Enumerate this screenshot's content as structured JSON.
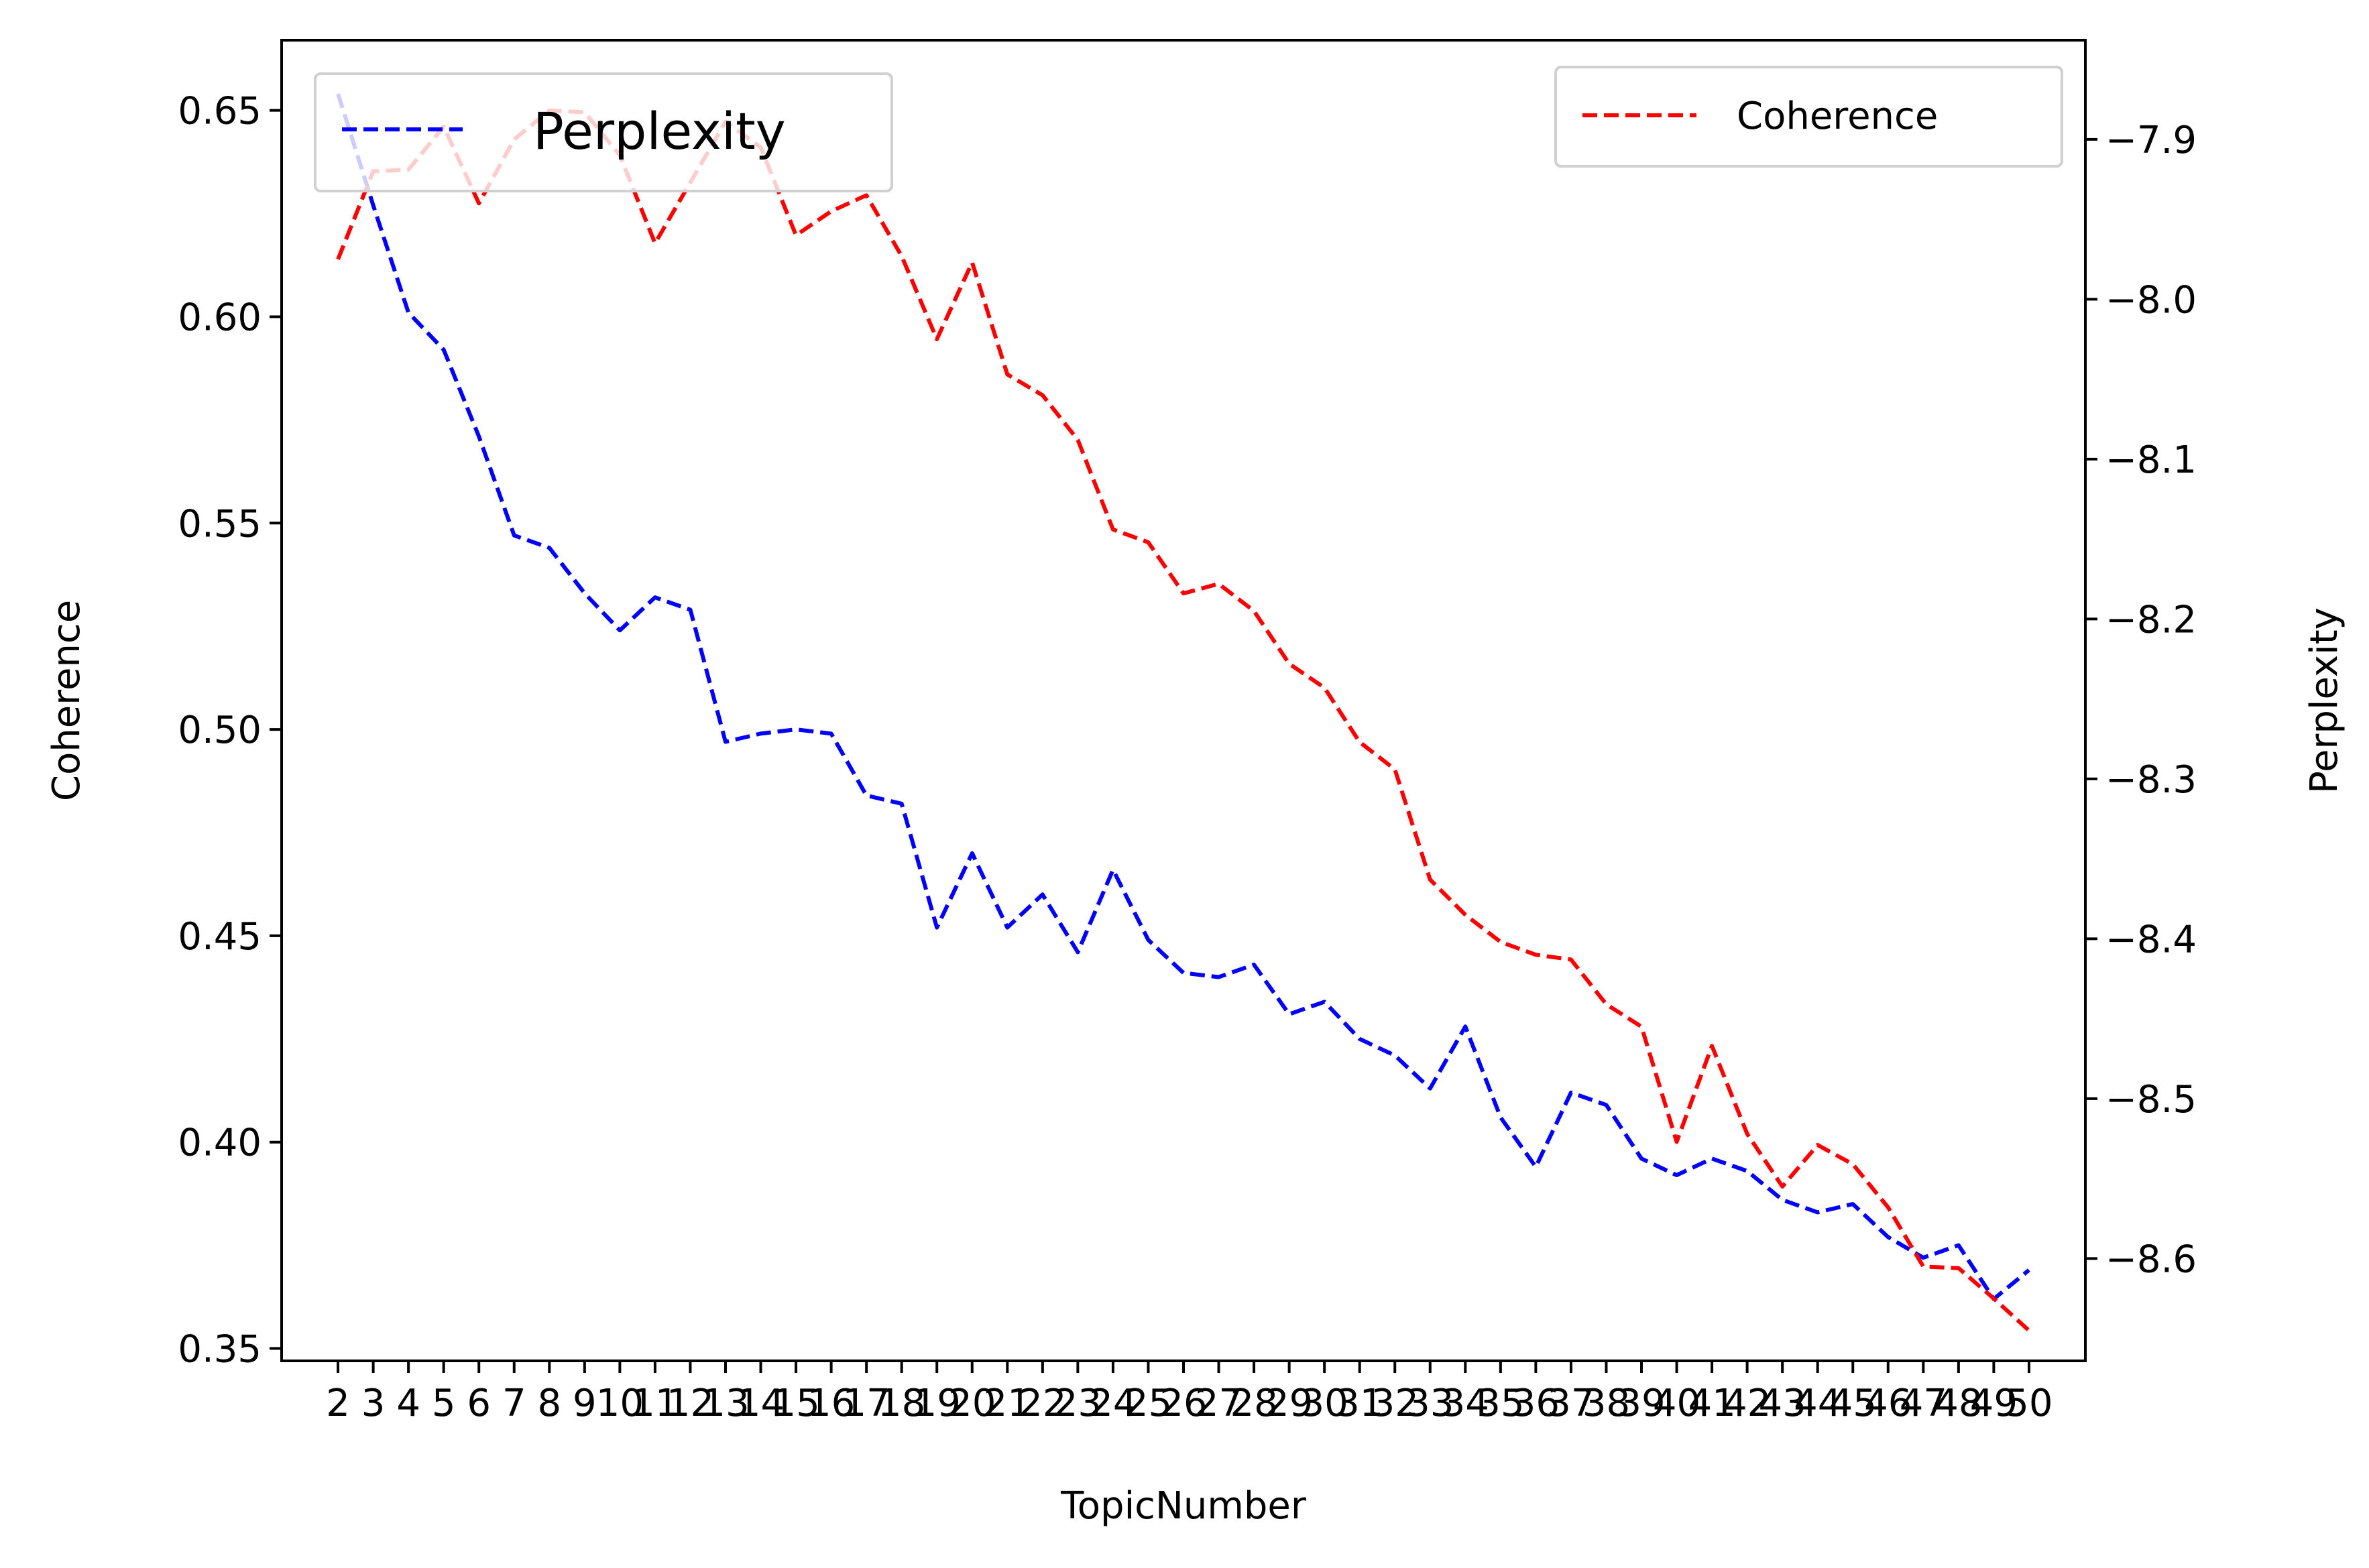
{
  "chart_data": {
    "type": "line",
    "xlabel": "TopicNumber",
    "ylabel_left": "Coherence",
    "ylabel_right": "Perplexity",
    "x": [
      2,
      3,
      4,
      5,
      6,
      7,
      8,
      9,
      10,
      11,
      12,
      13,
      14,
      15,
      16,
      17,
      18,
      19,
      20,
      21,
      22,
      23,
      24,
      25,
      26,
      27,
      28,
      29,
      30,
      31,
      32,
      33,
      34,
      35,
      36,
      37,
      38,
      39,
      40,
      41,
      42,
      43,
      44,
      45,
      46,
      47,
      48,
      49,
      50
    ],
    "x_tick_labels": [
      "2",
      "3",
      "4",
      "5",
      "6",
      "7",
      "8",
      "9",
      "10",
      "11",
      "12",
      "13",
      "14",
      "15",
      "16",
      "17",
      "18",
      "19",
      "20",
      "21",
      "22",
      "23",
      "24",
      "25",
      "26",
      "27",
      "28",
      "29",
      "30",
      "31",
      "32",
      "33",
      "34",
      "35",
      "36",
      "37",
      "38",
      "39",
      "40",
      "41",
      "42",
      "43",
      "44",
      "45",
      "46",
      "47",
      "48",
      "49",
      "50"
    ],
    "ylim_left": [
      0.347,
      0.667
    ],
    "ylim_right": [
      -8.664,
      -7.838
    ],
    "y_ticks_left": [
      "0.35",
      "0.40",
      "0.45",
      "0.50",
      "0.55",
      "0.60",
      "0.65"
    ],
    "y_ticks_right": [
      "−7.9",
      "−8.0",
      "−8.1",
      "−8.2",
      "−8.3",
      "−8.4",
      "−8.5",
      "−8.6"
    ],
    "series": [
      {
        "name": "Perplexity",
        "axis": "left",
        "color": "#0000ff",
        "style": "dashed",
        "values": [
          0.654,
          0.627,
          0.601,
          0.592,
          0.571,
          0.547,
          0.544,
          0.533,
          0.524,
          0.532,
          0.529,
          0.497,
          0.499,
          0.5,
          0.499,
          0.484,
          0.482,
          0.452,
          0.47,
          0.452,
          0.46,
          0.446,
          0.466,
          0.449,
          0.441,
          0.44,
          0.443,
          0.431,
          0.434,
          0.425,
          0.421,
          0.413,
          0.428,
          0.406,
          0.394,
          0.412,
          0.409,
          0.396,
          0.392,
          0.396,
          0.393,
          0.386,
          0.383,
          0.385,
          0.377,
          0.372,
          0.375,
          0.362,
          0.369
        ]
      },
      {
        "name": "Coherence",
        "axis": "right",
        "color": "#ff0000",
        "style": "dashed",
        "values": [
          -7.975,
          -7.92,
          -7.919,
          -7.892,
          -7.94,
          -7.9,
          -7.882,
          -7.883,
          -7.91,
          -7.965,
          -7.927,
          -7.889,
          -7.905,
          -7.96,
          -7.945,
          -7.935,
          -7.973,
          -8.025,
          -7.977,
          -8.047,
          -8.06,
          -8.088,
          -8.144,
          -8.152,
          -8.184,
          -8.178,
          -8.195,
          -8.228,
          -8.243,
          -8.277,
          -8.294,
          -8.363,
          -8.385,
          -8.402,
          -8.41,
          -8.413,
          -8.441,
          -8.455,
          -8.527,
          -8.467,
          -8.522,
          -8.555,
          -8.529,
          -8.541,
          -8.568,
          -8.605,
          -8.606,
          -8.625,
          -8.645
        ]
      }
    ],
    "legends": [
      {
        "label": "Perplexity",
        "position": "upper-left",
        "color": "#0000ff"
      },
      {
        "label": "Coherence",
        "position": "upper-right",
        "color": "#ff0000"
      }
    ]
  }
}
